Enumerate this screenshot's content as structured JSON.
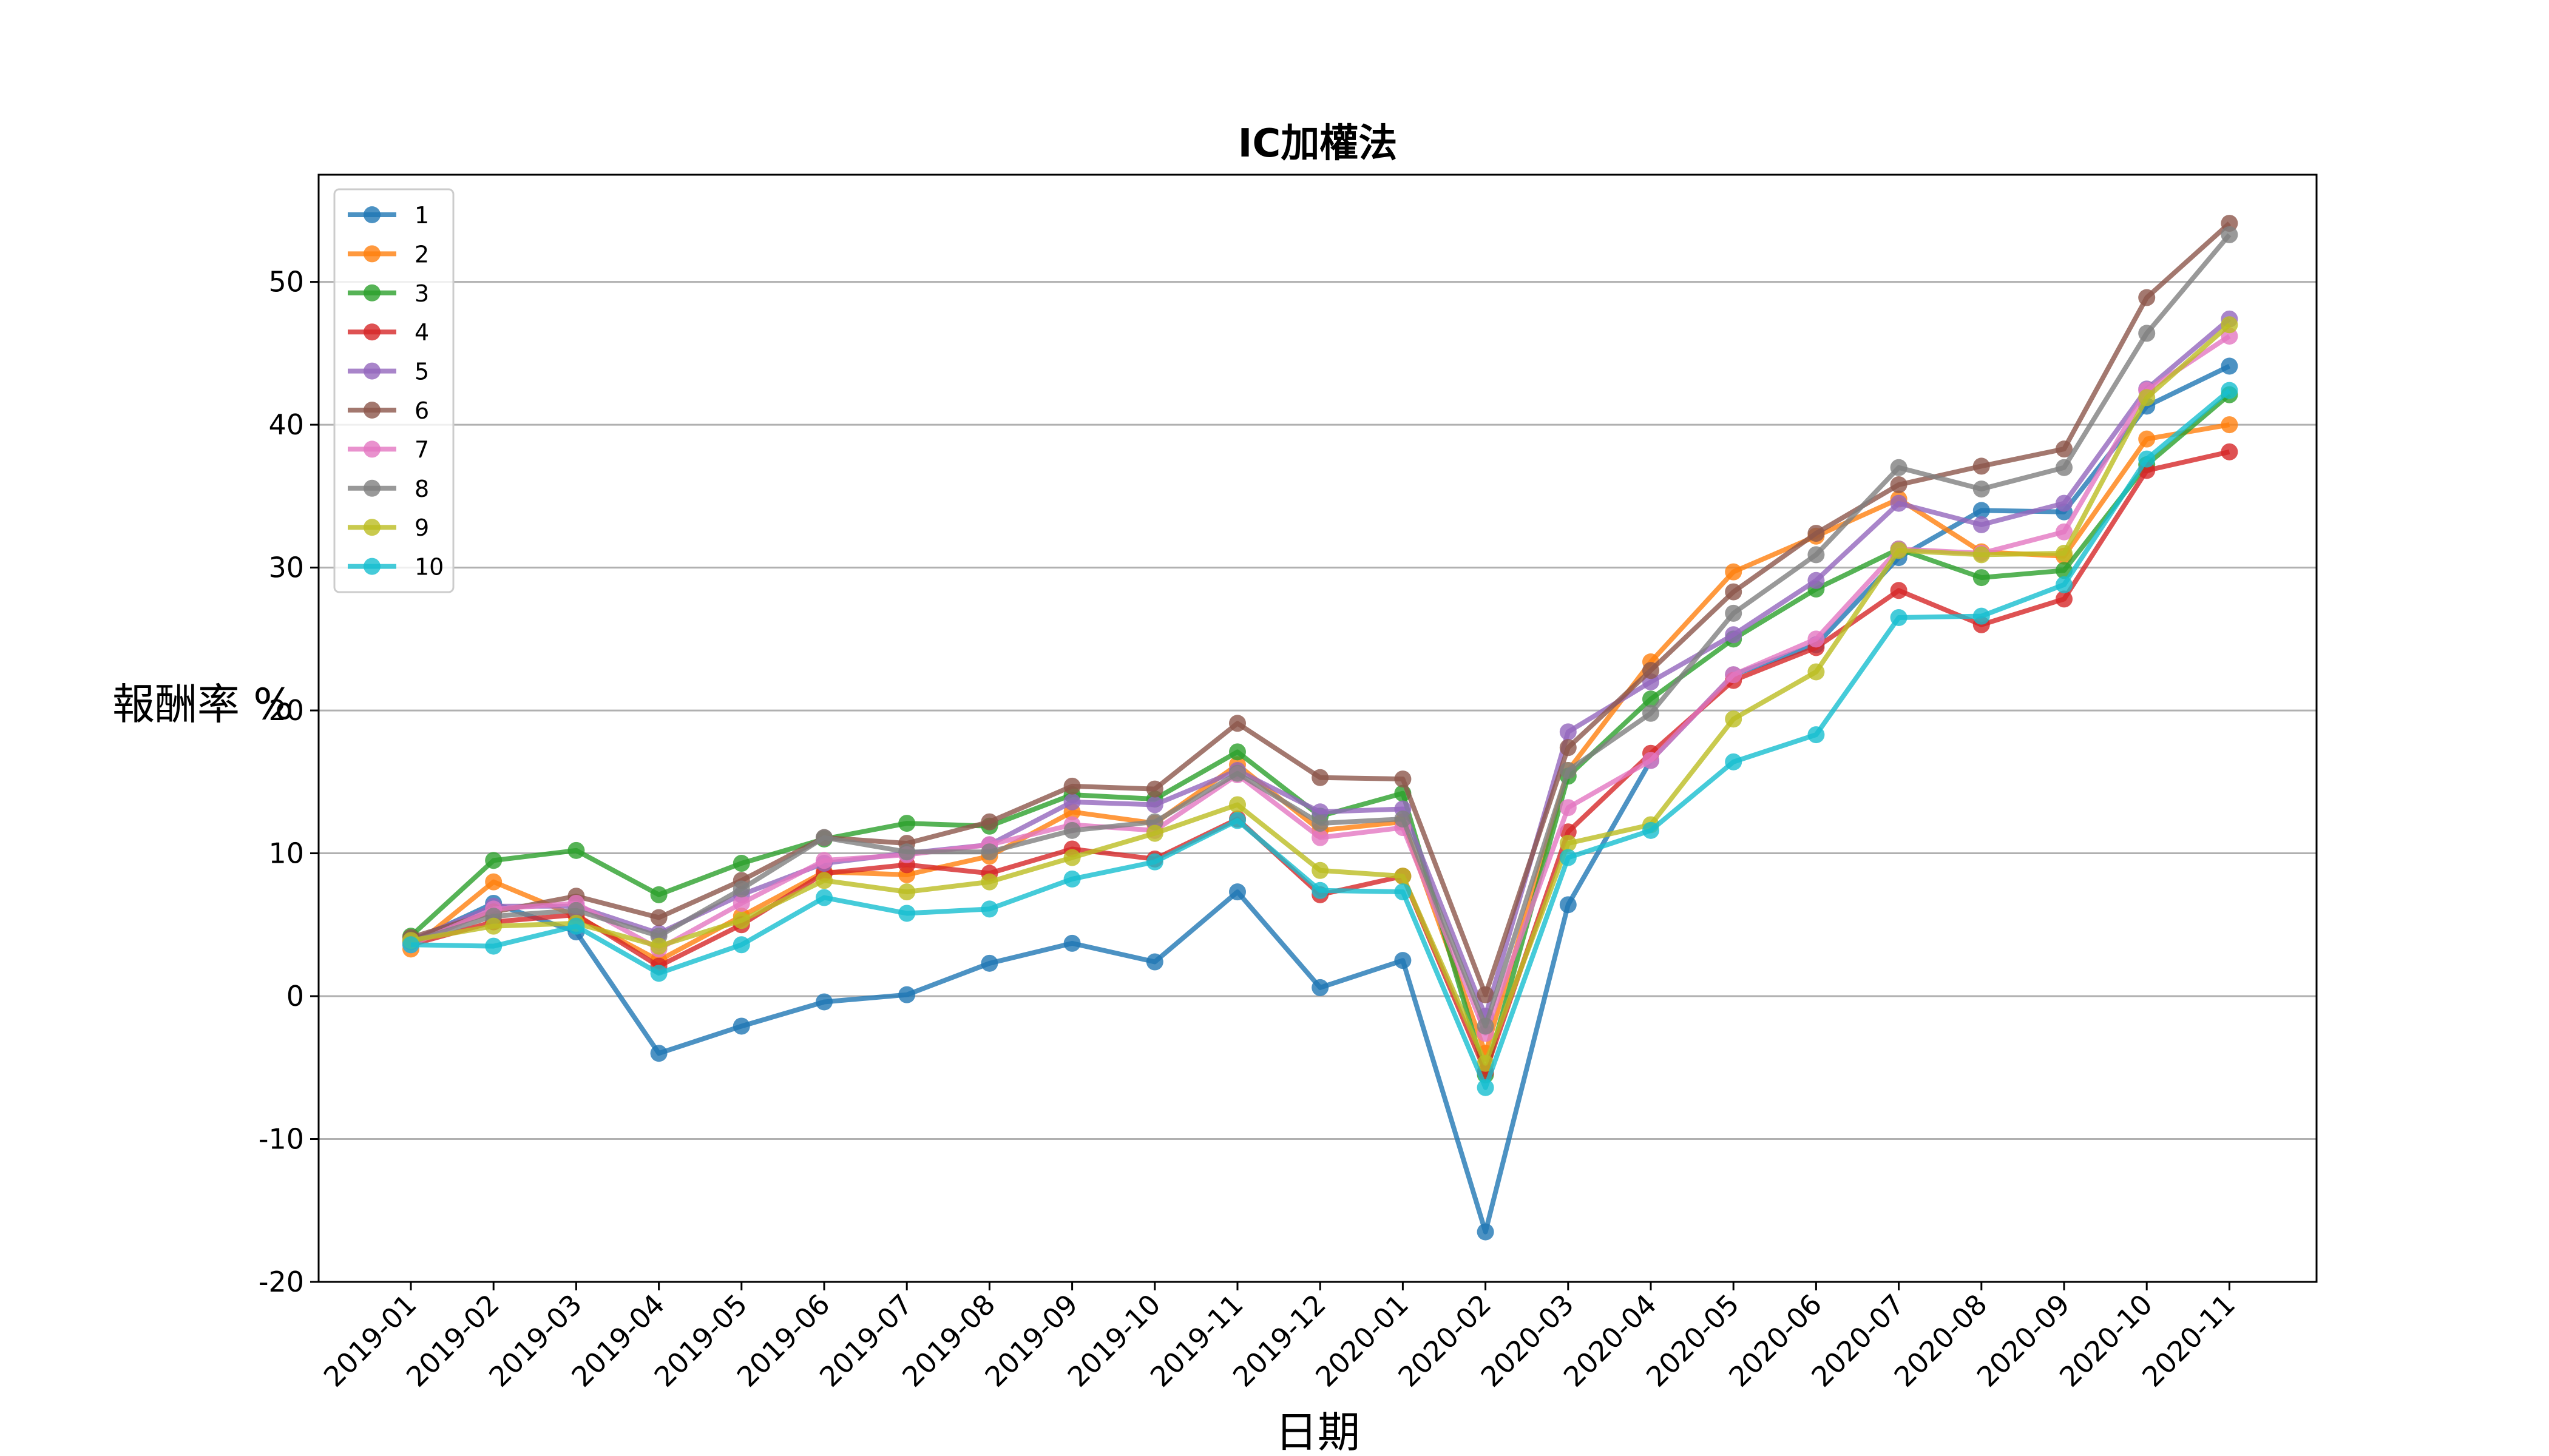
{
  "chart_data": {
    "type": "line",
    "title": "IC加權法",
    "xlabel": "日期",
    "ylabel": "報酬率 %",
    "ylim": [
      -20,
      57.5
    ],
    "yticks": [
      -20,
      -10,
      0,
      10,
      20,
      30,
      40,
      50
    ],
    "ytick_labels": [
      "-20",
      "-10",
      "0",
      "10",
      "20",
      "30",
      "40",
      "50"
    ],
    "grid": "horizontal",
    "legend_position": "top-left",
    "categories": [
      "2019-01",
      "2019-02",
      "2019-03",
      "2019-04",
      "2019-05",
      "2019-06",
      "2019-07",
      "2019-08",
      "2019-09",
      "2019-10",
      "2019-11",
      "2019-12",
      "2020-01",
      "2020-02",
      "2020-03",
      "2020-04",
      "2020-05",
      "2020-06",
      "2020-07",
      "2020-08",
      "2020-09",
      "2020-10",
      "2020-11"
    ],
    "series": [
      {
        "name": "1",
        "color": "#1f77b4",
        "values": [
          3.8,
          6.5,
          4.5,
          -4.0,
          -2.1,
          -0.4,
          0.1,
          2.3,
          3.7,
          2.4,
          7.3,
          0.6,
          2.5,
          -16.5,
          6.4,
          16.5,
          22.5,
          24.6,
          30.7,
          34.0,
          33.9,
          41.3,
          44.1
        ]
      },
      {
        "name": "2",
        "color": "#ff7f0e",
        "values": [
          3.3,
          8.0,
          5.6,
          2.5,
          5.6,
          8.7,
          8.5,
          9.8,
          12.9,
          12.1,
          16.2,
          11.6,
          12.2,
          -4.0,
          15.8,
          23.4,
          29.7,
          32.2,
          34.8,
          31.1,
          30.8,
          39.0,
          40.0
        ]
      },
      {
        "name": "3",
        "color": "#2ca02c",
        "values": [
          4.2,
          9.5,
          10.2,
          7.1,
          9.3,
          11.0,
          12.1,
          11.9,
          14.1,
          13.8,
          17.1,
          12.6,
          14.2,
          -5.5,
          15.4,
          20.8,
          25.0,
          28.5,
          31.3,
          29.3,
          29.8,
          37.2,
          42.1
        ]
      },
      {
        "name": "4",
        "color": "#d62728",
        "values": [
          3.6,
          5.2,
          5.7,
          2.1,
          5.0,
          8.6,
          9.2,
          8.6,
          10.3,
          9.6,
          12.4,
          7.1,
          8.4,
          -5.3,
          11.5,
          17.0,
          22.1,
          24.4,
          28.4,
          26.0,
          27.8,
          36.8,
          38.1
        ]
      },
      {
        "name": "5",
        "color": "#9467bd",
        "values": [
          3.9,
          6.3,
          6.3,
          4.4,
          7.1,
          9.3,
          10.0,
          10.6,
          13.6,
          13.4,
          15.8,
          12.9,
          13.1,
          -1.4,
          18.5,
          22.0,
          25.3,
          29.1,
          34.5,
          33.0,
          34.5,
          42.5,
          47.4
        ]
      },
      {
        "name": "6",
        "color": "#8c564b",
        "values": [
          4.1,
          5.9,
          7.0,
          5.5,
          8.1,
          11.1,
          10.7,
          12.2,
          14.7,
          14.5,
          19.1,
          15.3,
          15.2,
          0.1,
          17.4,
          22.8,
          28.3,
          32.4,
          35.8,
          37.1,
          38.3,
          48.9,
          54.1
        ]
      },
      {
        "name": "7",
        "color": "#e377c2",
        "values": [
          3.6,
          6.1,
          6.5,
          3.3,
          6.5,
          9.5,
          9.9,
          10.6,
          12.0,
          11.6,
          15.5,
          11.1,
          11.8,
          -2.6,
          13.2,
          16.5,
          22.5,
          25.0,
          31.3,
          31.0,
          32.5,
          42.4,
          46.2
        ]
      },
      {
        "name": "8",
        "color": "#7f7f7f",
        "values": [
          3.8,
          5.6,
          6.0,
          4.2,
          7.5,
          11.1,
          10.1,
          10.1,
          11.6,
          12.2,
          15.6,
          12.1,
          12.4,
          -2.1,
          15.8,
          19.8,
          26.8,
          30.9,
          37.0,
          35.5,
          37.0,
          46.4,
          53.3
        ]
      },
      {
        "name": "9",
        "color": "#bcbd22",
        "values": [
          3.9,
          4.9,
          5.1,
          3.5,
          5.3,
          8.1,
          7.3,
          8.0,
          9.7,
          11.4,
          13.4,
          8.8,
          8.4,
          -4.7,
          10.7,
          12.0,
          19.4,
          22.7,
          31.2,
          30.9,
          31.0,
          41.9,
          47.0
        ]
      },
      {
        "name": "10",
        "color": "#17becf",
        "values": [
          3.6,
          3.5,
          4.9,
          1.6,
          3.6,
          6.9,
          5.8,
          6.1,
          8.2,
          9.4,
          12.3,
          7.4,
          7.3,
          -6.4,
          9.7,
          11.6,
          16.4,
          18.3,
          26.5,
          26.6,
          28.8,
          37.6,
          42.4
        ]
      }
    ]
  }
}
